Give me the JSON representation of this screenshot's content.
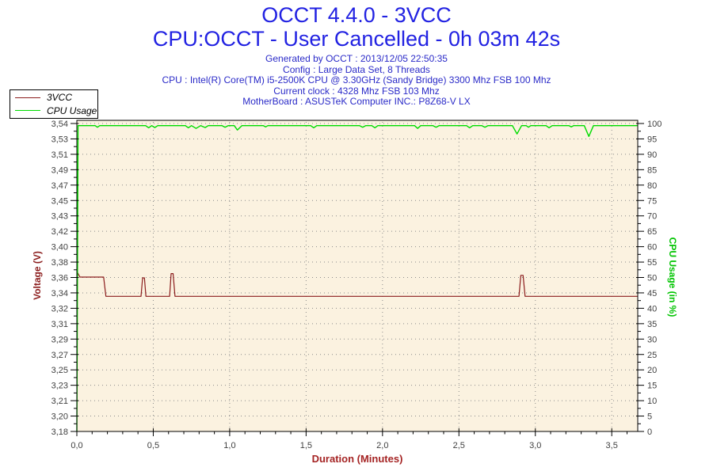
{
  "header": {
    "title_line1": "OCCT 4.4.0 - 3VCC",
    "title_line2": "CPU:OCCT - User Cancelled - 0h 03m 42s",
    "info_lines": [
      "Generated by OCCT : 2013/12/05 22:50:35",
      "Config : Large Data Set, 8 Threads",
      "CPU : Intel(R) Core(TM) i5-2500K CPU @ 3.30GHz (Sandy Bridge) 3300 Mhz FSB 100 Mhz",
      "Current clock : 4328 Mhz FSB 103 Mhz",
      "MotherBoard : ASUSTeK Computer INC.: P8Z68-V LX"
    ]
  },
  "legend": {
    "items": [
      {
        "label": "3VCC",
        "color": "#8b1c1c"
      },
      {
        "label": "CPU Usage",
        "color": "#00dc00"
      }
    ]
  },
  "colors": {
    "title": "#2222e2",
    "info": "#2a2ac8",
    "axis_label_left": "#8b1c1c",
    "axis_label_right": "#00c400",
    "axis_label_x": "#a52424",
    "tick_label": "#404040",
    "plot_border": "#000000",
    "grid_dot": "#8a8a8a",
    "plot_background": "#fbf2e0"
  },
  "chart_data": {
    "type": "line",
    "title": "OCCT 4.4.0 - 3VCC",
    "subtitle": "CPU:OCCT - User Cancelled - 0h 03m 42s",
    "xlabel": "Duration (Minutes)",
    "ylabel_left": "Voltage (V)",
    "ylabel_right": "CPU Usage (in %)",
    "grid": true,
    "legend_position": "top-left",
    "x_range": [
      0,
      3.67
    ],
    "x_major_tick_step": 0.5,
    "x_minor_tick_step": 0.1,
    "x_tick_labels": [
      "0,0",
      "0,5",
      "1,0",
      "1,5",
      "2,0",
      "2,5",
      "3,0",
      "3,5"
    ],
    "y_left_range": [
      3.18,
      3.54
    ],
    "y_left_tick_labels_top_to_bottom": [
      "3,54",
      "3,53",
      "3,51",
      "3,49",
      "3,47",
      "3,45",
      "3,43",
      "3,42",
      "3,40",
      "3,38",
      "3,36",
      "3,34",
      "3,32",
      "3,31",
      "3,29",
      "3,27",
      "3,25",
      "3,23",
      "3,21",
      "3,20",
      "3,18"
    ],
    "y_right_range": [
      0,
      100
    ],
    "y_right_tick_labels_top_to_bottom": [
      "100",
      "95",
      "90",
      "85",
      "80",
      "75",
      "70",
      "65",
      "60",
      "55",
      "50",
      "45",
      "40",
      "35",
      "30",
      "25",
      "20",
      "15",
      "10",
      "5",
      "0"
    ],
    "series": [
      {
        "name": "3VCC",
        "axis": "left",
        "color": "#8b1c1c",
        "points": [
          [
            0,
            3.352
          ],
          [
            0.005,
            3.3655
          ],
          [
            0.02,
            3.3605
          ],
          [
            0.175,
            3.3605
          ],
          [
            0.19,
            3.338
          ],
          [
            0.42,
            3.338
          ],
          [
            0.43,
            3.3595
          ],
          [
            0.442,
            3.3595
          ],
          [
            0.452,
            3.338
          ],
          [
            0.607,
            3.338
          ],
          [
            0.617,
            3.3645
          ],
          [
            0.63,
            3.3645
          ],
          [
            0.642,
            3.338
          ],
          [
            2.893,
            3.338
          ],
          [
            2.905,
            3.3625
          ],
          [
            2.92,
            3.3625
          ],
          [
            2.933,
            3.338
          ],
          [
            3.67,
            3.338
          ]
        ]
      },
      {
        "name": "CPU Usage",
        "axis": "right",
        "color": "#00dc00",
        "points": [
          [
            0,
            0
          ],
          [
            0.008,
            99.3
          ],
          [
            0.12,
            99.3
          ],
          [
            0.135,
            98.8
          ],
          [
            0.15,
            99.3
          ],
          [
            0.45,
            99.3
          ],
          [
            0.47,
            98.6
          ],
          [
            0.49,
            99.3
          ],
          [
            0.51,
            98.7
          ],
          [
            0.53,
            99.3
          ],
          [
            0.71,
            99.3
          ],
          [
            0.73,
            98.6
          ],
          [
            0.75,
            99.3
          ],
          [
            0.78,
            98.4
          ],
          [
            0.81,
            99.3
          ],
          [
            0.84,
            98.7
          ],
          [
            0.86,
            99.3
          ],
          [
            0.95,
            99.3
          ],
          [
            0.97,
            98.8
          ],
          [
            0.99,
            99.3
          ],
          [
            1.03,
            99.3
          ],
          [
            1.05,
            97.9
          ],
          [
            1.08,
            99.3
          ],
          [
            1.22,
            99.3
          ],
          [
            1.235,
            98.9
          ],
          [
            1.25,
            99.3
          ],
          [
            1.53,
            99.3
          ],
          [
            1.55,
            98.6
          ],
          [
            1.57,
            99.3
          ],
          [
            1.85,
            99.3
          ],
          [
            1.87,
            98.8
          ],
          [
            1.89,
            99.3
          ],
          [
            1.93,
            99.3
          ],
          [
            1.95,
            98.6
          ],
          [
            1.97,
            99.3
          ],
          [
            2.21,
            99.3
          ],
          [
            2.23,
            98.4
          ],
          [
            2.25,
            99.3
          ],
          [
            2.33,
            99.3
          ],
          [
            2.35,
            98.8
          ],
          [
            2.37,
            99.3
          ],
          [
            2.55,
            99.3
          ],
          [
            2.57,
            98.6
          ],
          [
            2.59,
            99.3
          ],
          [
            2.65,
            99.3
          ],
          [
            2.67,
            98.8
          ],
          [
            2.69,
            99.3
          ],
          [
            2.85,
            99.3
          ],
          [
            2.88,
            96.6
          ],
          [
            2.91,
            99.3
          ],
          [
            2.94,
            99.3
          ],
          [
            2.955,
            98.8
          ],
          [
            2.97,
            99.3
          ],
          [
            3.07,
            99.3
          ],
          [
            3.09,
            98.6
          ],
          [
            3.11,
            99.3
          ],
          [
            3.22,
            99.3
          ],
          [
            3.235,
            98.9
          ],
          [
            3.25,
            99.3
          ],
          [
            3.32,
            99.3
          ],
          [
            3.35,
            95.8
          ],
          [
            3.38,
            99.3
          ],
          [
            3.67,
            99.3
          ]
        ]
      }
    ]
  }
}
